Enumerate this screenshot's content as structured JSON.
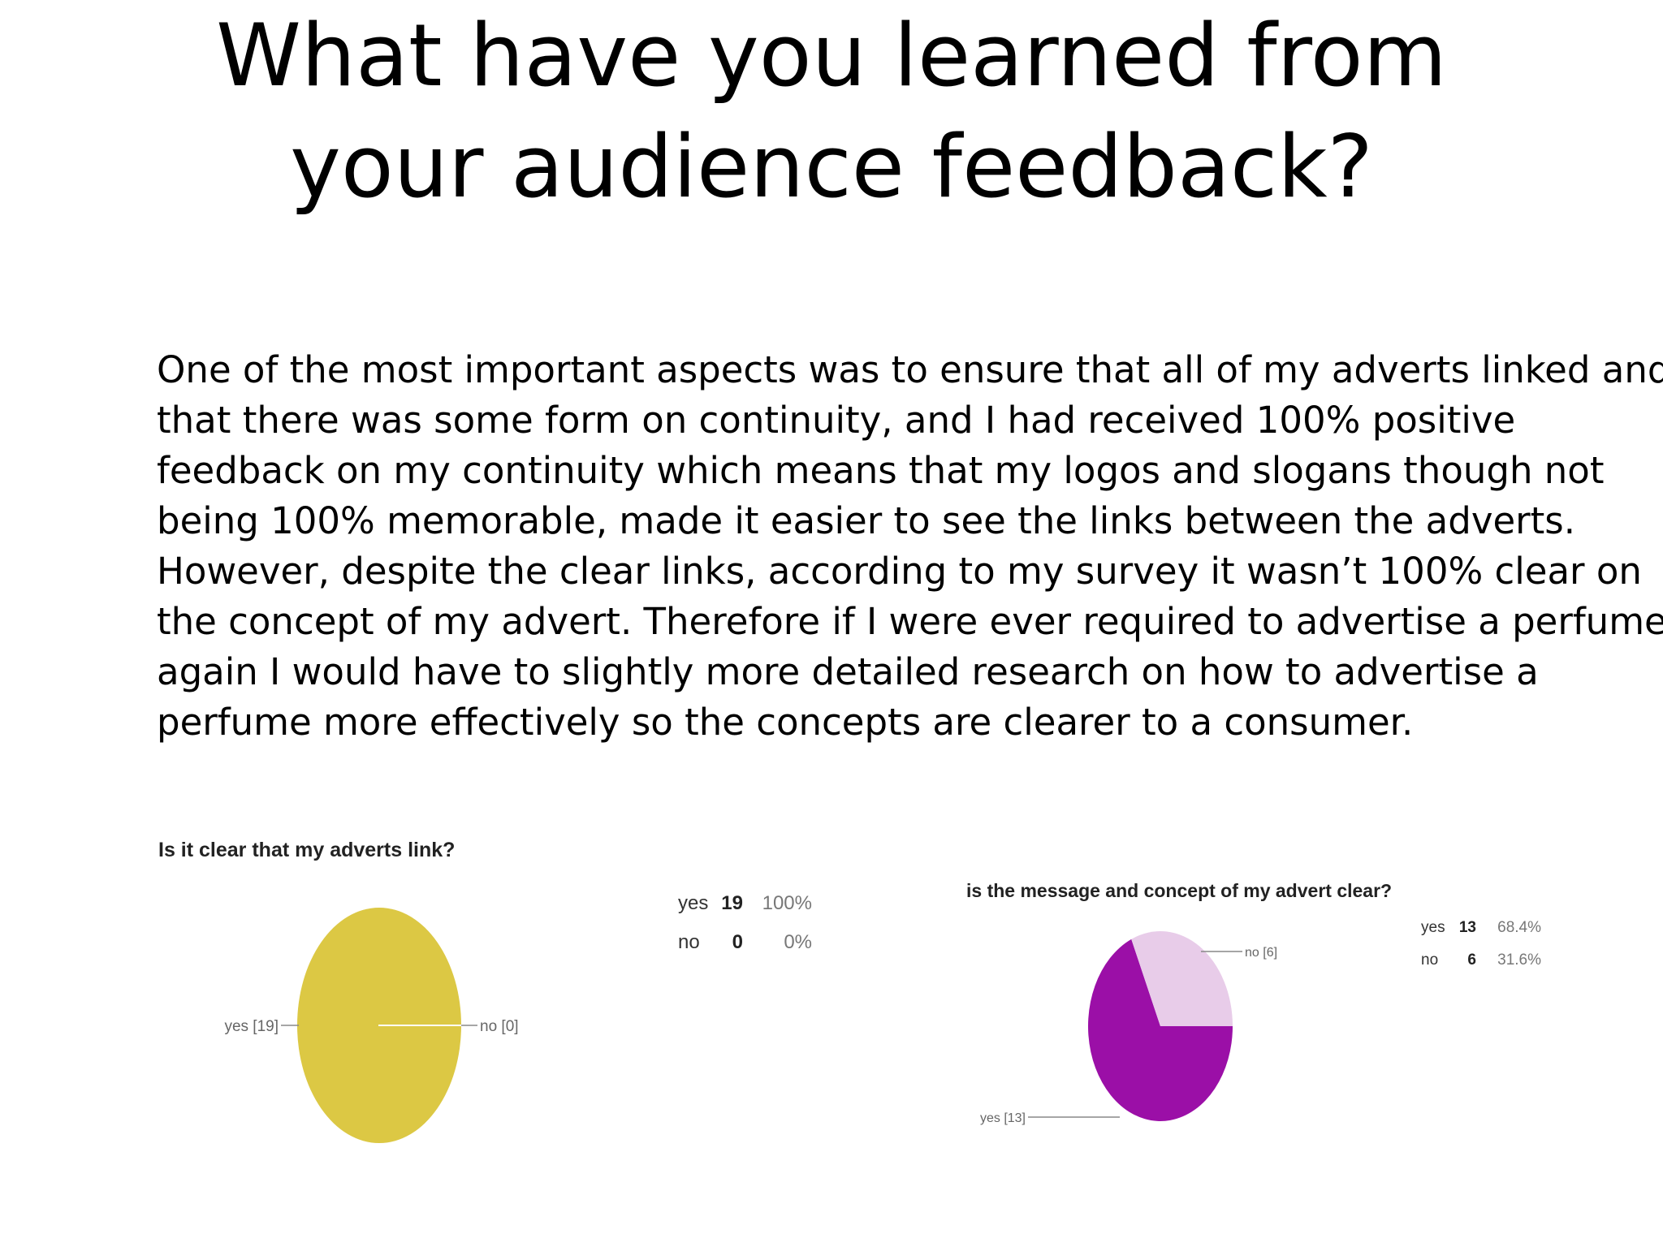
{
  "slide": {
    "title": "What have you learned from your audience feedback?",
    "body_lines": [
      "One of the most important aspects was to ensure that all of my adverts linked and",
      "that there was some form on continuity, and I had received 100%  positive",
      "feedback on my continuity which means that my logos and slogans though not",
      "being 100% memorable, made it easier to see the links between the adverts.",
      "However, despite the clear links, according to my survey it wasn’t 100% clear on",
      "the concept of my advert. Therefore if I were ever required to advertise a perfume",
      "again I would have to slightly more detailed research on how to advertise a",
      "perfume more effectively so the concepts are clearer to a consumer."
    ]
  },
  "chart_data": [
    {
      "type": "pie",
      "title": "Is it clear that my adverts link?",
      "categories": [
        "yes",
        "no"
      ],
      "values": [
        19,
        0
      ],
      "slice_labels": [
        "yes [19]",
        "no [0]"
      ],
      "table": [
        {
          "label": "yes",
          "count": "19",
          "percent": "100%"
        },
        {
          "label": "no",
          "count": "0",
          "percent": "0%"
        }
      ],
      "colors": [
        "#dcc844",
        "#e8cce9"
      ]
    },
    {
      "type": "pie",
      "title": "is the message and concept of my advert clear?",
      "categories": [
        "yes",
        "no"
      ],
      "values": [
        13,
        6
      ],
      "slice_labels": [
        "yes [13]",
        "no [6]"
      ],
      "table": [
        {
          "label": "yes",
          "count": "13",
          "percent": "68.4%"
        },
        {
          "label": "no",
          "count": "6",
          "percent": "31.6%"
        }
      ],
      "colors": [
        "#9b0fa7",
        "#e8cce9"
      ]
    }
  ]
}
